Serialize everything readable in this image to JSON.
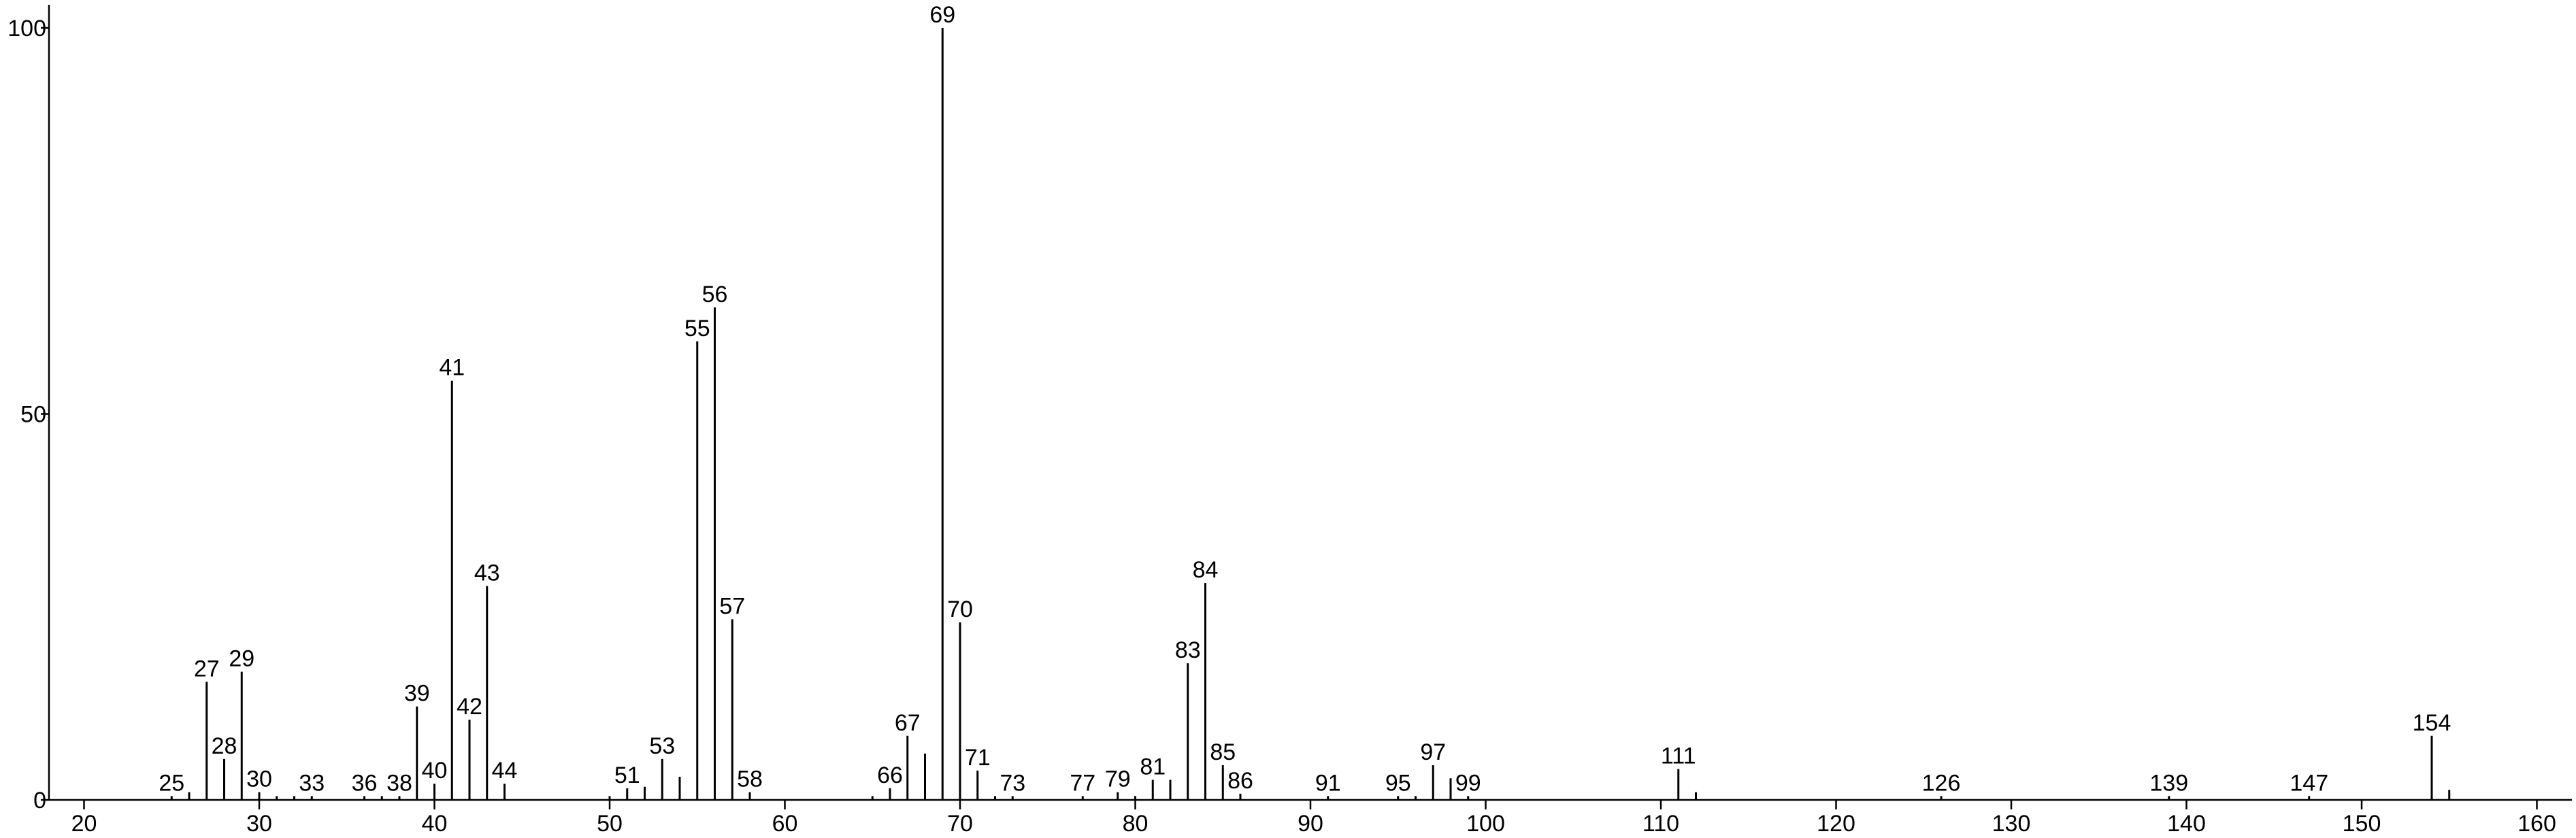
{
  "chart_data": {
    "type": "stem",
    "x": [
      25,
      26,
      27,
      28,
      29,
      30,
      31,
      32,
      33,
      36,
      37,
      38,
      39,
      40,
      41,
      42,
      43,
      44,
      50,
      51,
      52,
      53,
      54,
      55,
      56,
      57,
      58,
      65,
      66,
      67,
      68,
      69,
      70,
      71,
      72,
      73,
      77,
      79,
      80,
      81,
      82,
      83,
      84,
      85,
      86,
      91,
      95,
      96,
      97,
      98,
      99,
      111,
      112,
      126,
      139,
      147,
      154,
      155
    ],
    "values": [
      0.5,
      1,
      15.3,
      5.3,
      16.6,
      1,
      0.5,
      0.5,
      0.5,
      0.5,
      0.5,
      0.5,
      12.1,
      2.1,
      54.3,
      10.4,
      27.7,
      2.1,
      0.5,
      1.5,
      1.7,
      5.3,
      3,
      59.4,
      63.8,
      23.4,
      1,
      0.5,
      1.5,
      8.3,
      6,
      100,
      23,
      3.8,
      0.5,
      0.5,
      0.5,
      1,
      0.5,
      2.6,
      2.6,
      17.7,
      28.1,
      4.5,
      0.8,
      0.5,
      0.5,
      0.5,
      4.5,
      2.8,
      0.5,
      4,
      1,
      0.5,
      0.5,
      0.5,
      8.3,
      1.3
    ],
    "labels": [
      25,
      null,
      27,
      28,
      29,
      30,
      null,
      null,
      33,
      36,
      null,
      38,
      39,
      40,
      41,
      42,
      43,
      44,
      null,
      51,
      null,
      53,
      null,
      55,
      56,
      57,
      58,
      null,
      66,
      67,
      null,
      69,
      70,
      71,
      null,
      73,
      77,
      79,
      null,
      81,
      null,
      83,
      84,
      85,
      86,
      91,
      95,
      null,
      97,
      null,
      99,
      111,
      null,
      126,
      139,
      147,
      154,
      null
    ],
    "color": "#000000",
    "xlim": [
      18,
      162
    ],
    "xticks": [
      20,
      30,
      40,
      50,
      60,
      70,
      80,
      90,
      100,
      110,
      120,
      130,
      140,
      150,
      160
    ],
    "ylim": [
      0,
      103
    ],
    "yticks": [
      0,
      50,
      100
    ]
  }
}
